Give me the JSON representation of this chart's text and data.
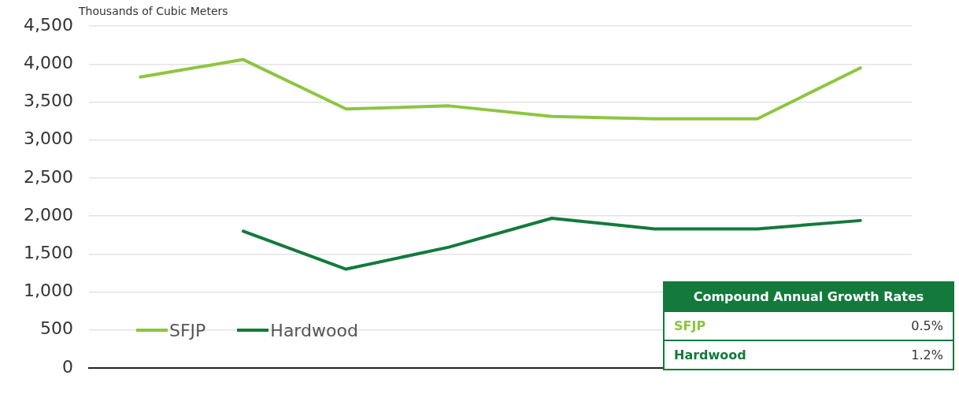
{
  "chart_data": {
    "type": "line",
    "ylabel": "Thousands of Cubic Meters",
    "categories": [
      null,
      null,
      null,
      null,
      null,
      null,
      null,
      null
    ],
    "series": [
      {
        "name": "SFJP",
        "color": "#8cc63f",
        "values": [
          3830,
          4060,
          3410,
          3450,
          3310,
          3280,
          3280,
          3950
        ]
      },
      {
        "name": "Hardwood",
        "color": "#137a3c",
        "values": [
          null,
          1800,
          1300,
          1590,
          1970,
          1830,
          1830,
          1940
        ]
      }
    ],
    "ylim": [
      0,
      4500
    ],
    "yticks": [
      0,
      500,
      {
        "value": 1000,
        "label": "1,000"
      },
      {
        "value": 1500,
        "label": "1,500"
      },
      {
        "value": 2000,
        "label": "2,000"
      },
      {
        "value": 2500,
        "label": "2,500"
      },
      {
        "value": 3000,
        "label": "3,000"
      },
      {
        "value": 3500,
        "label": "3,500"
      },
      {
        "value": 4000,
        "label": "4,000"
      },
      {
        "value": 4500,
        "label": "4,500"
      }
    ],
    "grid": "y",
    "legend": "bottom left",
    "tick_labels": "y",
    "marker": "none",
    "annotations": [
      "Compound Annual Growth Rates",
      "SFJP",
      "0.5%",
      "Hardwood",
      "1.2%"
    ]
  }
}
